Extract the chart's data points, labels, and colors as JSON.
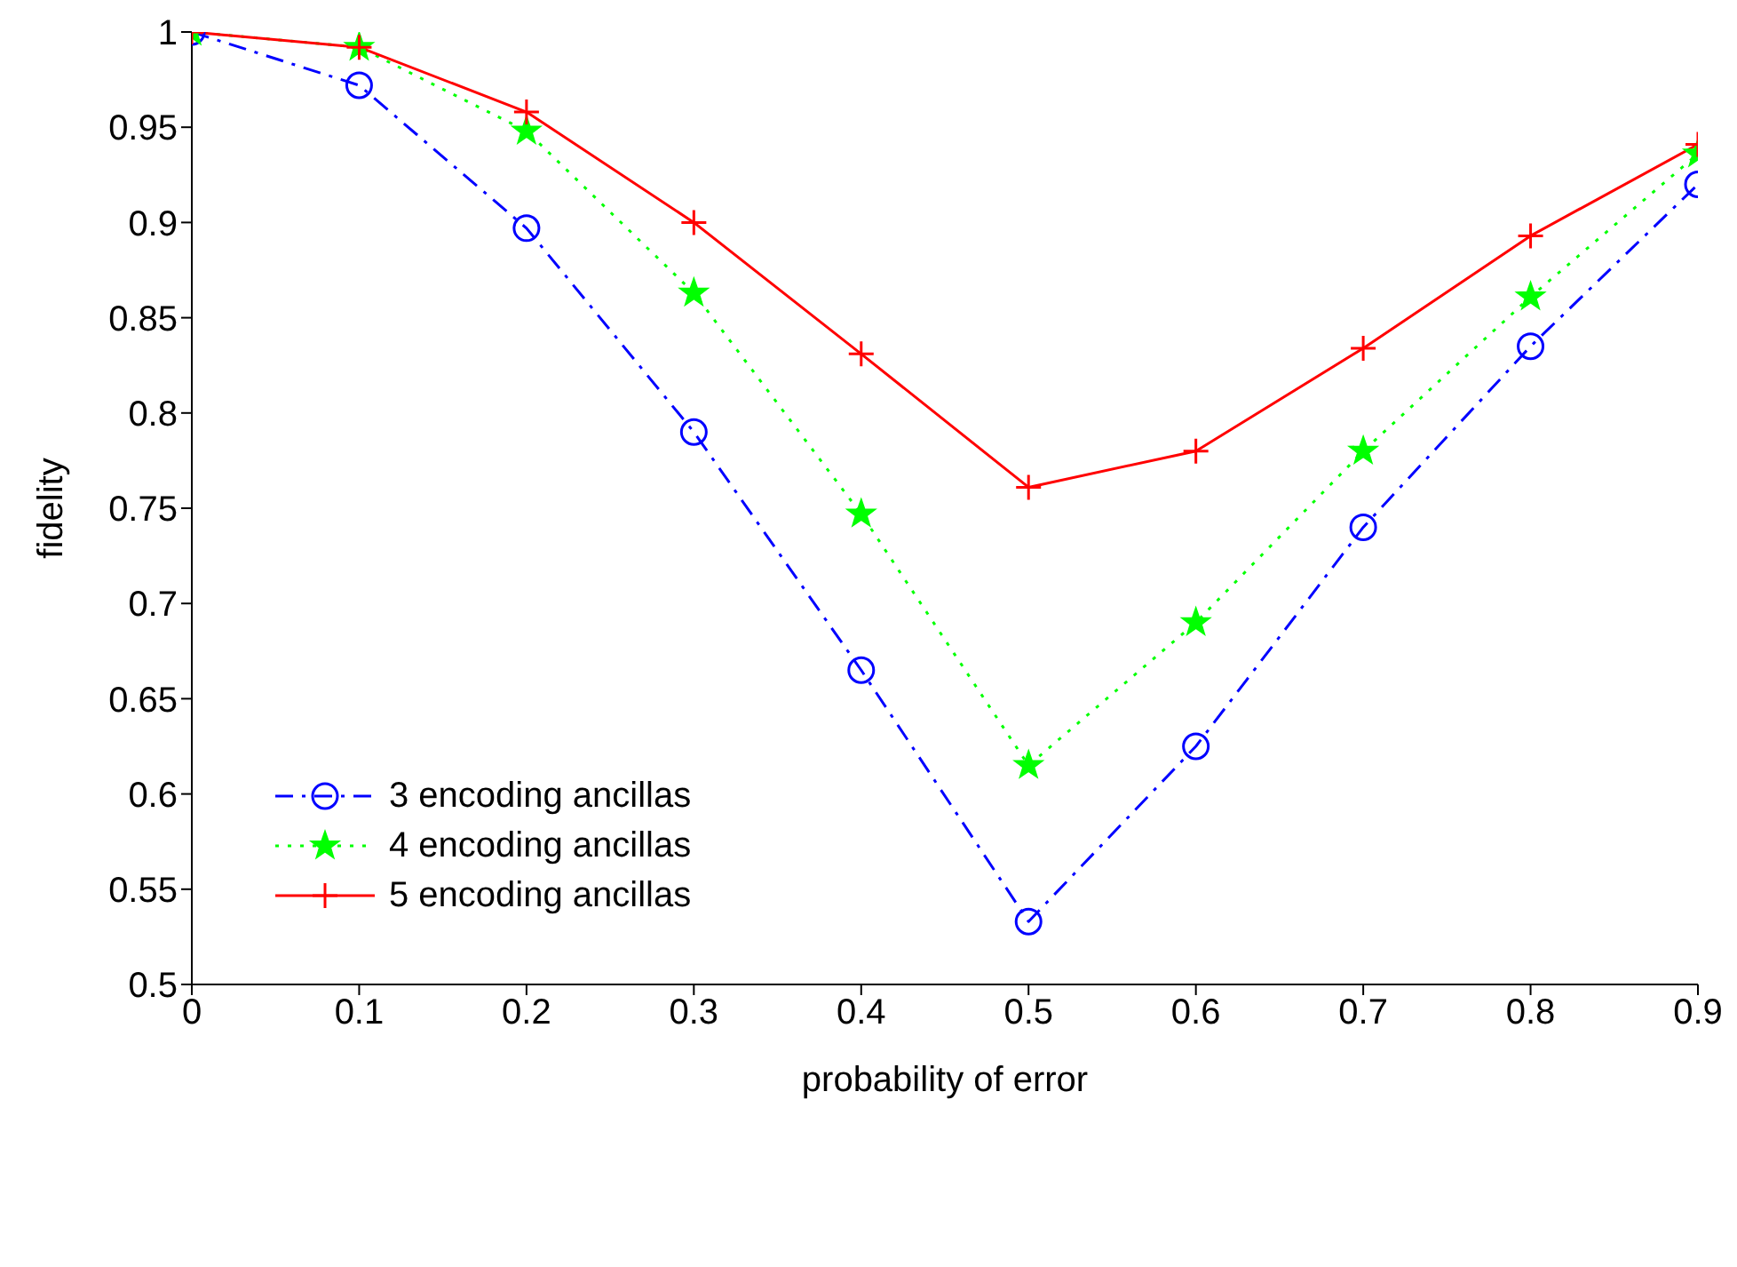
{
  "chart_data": {
    "type": "line",
    "xlabel": "probability of error",
    "ylabel": "fidelity",
    "x": [
      0,
      0.1,
      0.2,
      0.3,
      0.4,
      0.5,
      0.6,
      0.7,
      0.8,
      0.9
    ],
    "xlim": [
      0,
      0.9
    ],
    "xticks": [
      0,
      0.1,
      0.2,
      0.3,
      0.4,
      0.5,
      0.6,
      0.7,
      0.8,
      0.9
    ],
    "ylim": [
      0.5,
      1
    ],
    "yticks": [
      0.5,
      0.55,
      0.6,
      0.65,
      0.7,
      0.75,
      0.8,
      0.85,
      0.9,
      0.95,
      1
    ],
    "legend": "bottom left",
    "grid": false,
    "series": [
      {
        "name": "3 encoding ancillas",
        "color": "#0000ff",
        "marker": "circle",
        "line_style": "dashdot",
        "values": [
          1,
          0.972,
          0.897,
          0.79,
          0.665,
          0.533,
          0.625,
          0.74,
          0.835,
          0.92
        ]
      },
      {
        "name": "4 encoding ancillas",
        "color": "#00ff00",
        "marker": "star",
        "line_style": "dotted",
        "values": [
          1,
          0.992,
          0.948,
          0.863,
          0.747,
          0.615,
          0.69,
          0.78,
          0.861,
          0.936
        ]
      },
      {
        "name": "5 encoding ancillas",
        "color": "#ff0000",
        "marker": "cross",
        "line_style": "solid",
        "values": [
          1,
          0.992,
          0.958,
          0.9,
          0.831,
          0.761,
          0.78,
          0.834,
          0.893,
          0.941
        ]
      }
    ]
  }
}
